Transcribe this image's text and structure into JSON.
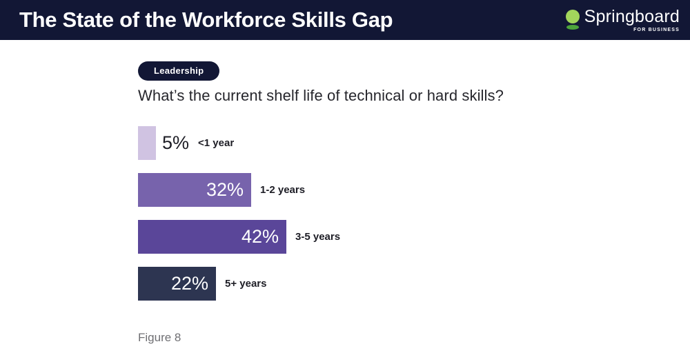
{
  "header": {
    "title": "The State of the Workforce Skills Gap",
    "brand": {
      "name": "Springboard",
      "tagline": "FOR BUSINESS"
    }
  },
  "badge_label": "Leadership",
  "question": "What’s the current shelf life of technical or hard skills?",
  "figure_caption": "Figure 8",
  "colors": {
    "header_bg": "#121735",
    "badge_bg": "#121735",
    "logo_green_light": "#a2d55c",
    "logo_green_dark": "#4ca43c",
    "text_dark": "#1d1d25",
    "caption_gray": "#6f6f73"
  },
  "chart_data": {
    "type": "bar",
    "orientation": "horizontal",
    "title": "What’s the current shelf life of technical or hard skills?",
    "categories": [
      "<1 year",
      "1-2 years",
      "3-5 years",
      "5+ years"
    ],
    "values": [
      5,
      32,
      42,
      22
    ],
    "value_labels": [
      "5%",
      "32%",
      "42%",
      "22%"
    ],
    "bar_colors": [
      "#d0c3e2",
      "#7763ac",
      "#5a4699",
      "#2d3551"
    ],
    "value_label_inside": [
      false,
      true,
      true,
      true
    ],
    "xlabel": "",
    "ylabel": "",
    "value_format": "percent",
    "grid": false,
    "legend": false
  }
}
